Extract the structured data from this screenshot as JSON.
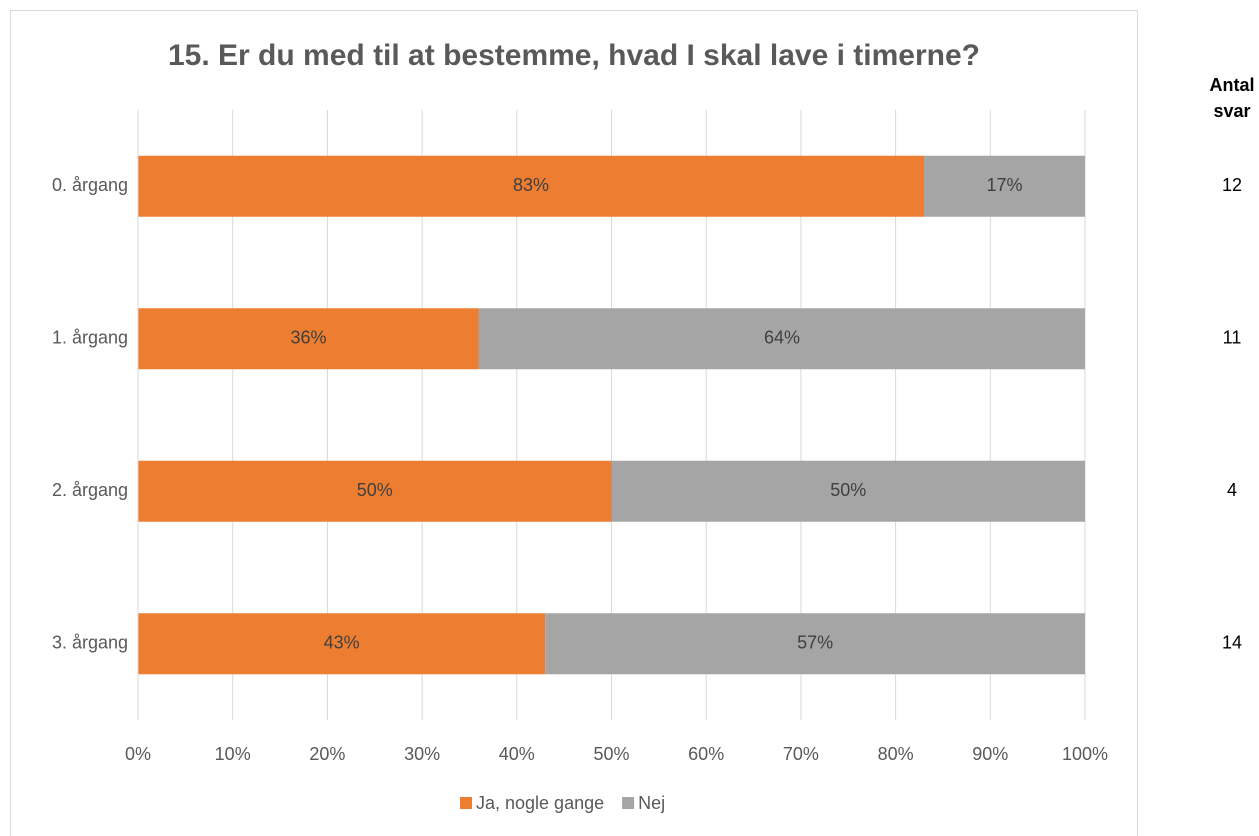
{
  "chart_data": {
    "type": "stacked_bar_horizontal",
    "title": "15. Er du med til at bestemme, hvad I skal lave i timerne?",
    "categories": [
      "0. årgang",
      "1. årgang",
      "2. årgang",
      "3. årgang"
    ],
    "series": [
      {
        "name": "Ja, nogle gange",
        "color": "#ed7d31",
        "values": [
          83,
          36,
          50,
          43
        ],
        "value_labels": [
          "83%",
          "36%",
          "50%",
          "43%"
        ]
      },
      {
        "name": "Nej",
        "color": "#a5a5a5",
        "values": [
          17,
          64,
          50,
          57
        ],
        "value_labels": [
          "17%",
          "64%",
          "50%",
          "57%"
        ]
      }
    ],
    "xlim": [
      0,
      100
    ],
    "xticks": [
      {
        "value": 0,
        "label": "0%"
      },
      {
        "value": 10,
        "label": "10%"
      },
      {
        "value": 20,
        "label": "20%"
      },
      {
        "value": 30,
        "label": "30%"
      },
      {
        "value": 40,
        "label": "40%"
      },
      {
        "value": 50,
        "label": "50%"
      },
      {
        "value": 60,
        "label": "60%"
      },
      {
        "value": 70,
        "label": "70%"
      },
      {
        "value": 80,
        "label": "80%"
      },
      {
        "value": 90,
        "label": "90%"
      },
      {
        "value": 100,
        "label": "100%"
      }
    ],
    "grid": true,
    "legend": "bottom",
    "side_header": "Antal svar",
    "counts": [
      12,
      11,
      4,
      14
    ]
  }
}
